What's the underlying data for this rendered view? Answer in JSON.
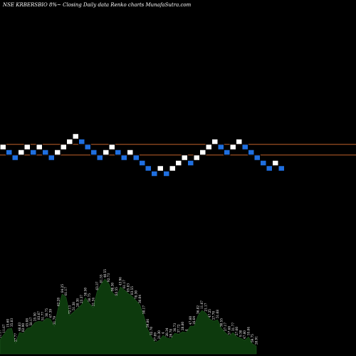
{
  "header": {
    "title": "NSE KRBERSBIO 8%~ Closing Daily data Renko charts MunafaSutra.com"
  },
  "colors": {
    "background": "#000000",
    "up_brick": "#ffffff",
    "down_brick": "#1f6fe0",
    "brick_edge": "#000000",
    "reference_line": "#c0602a",
    "volume_fill": "#0d3a0d",
    "volume_edge": "#1f5a1f",
    "text": "#ffffff"
  },
  "chart_data": [
    {
      "type": "renko",
      "brick_size": 1,
      "reference_levels": [
        2.5,
        0.5
      ],
      "bricks": [
        {
          "dir": "up",
          "level": 2
        },
        {
          "dir": "down",
          "level": 1
        },
        {
          "dir": "down",
          "level": 0
        },
        {
          "dir": "up",
          "level": 1
        },
        {
          "dir": "up",
          "level": 2
        },
        {
          "dir": "down",
          "level": 1
        },
        {
          "dir": "up",
          "level": 2
        },
        {
          "dir": "down",
          "level": 1
        },
        {
          "dir": "down",
          "level": 0
        },
        {
          "dir": "up",
          "level": 1
        },
        {
          "dir": "up",
          "level": 2
        },
        {
          "dir": "up",
          "level": 3
        },
        {
          "dir": "up",
          "level": 4
        },
        {
          "dir": "down",
          "level": 3
        },
        {
          "dir": "down",
          "level": 2
        },
        {
          "dir": "down",
          "level": 1
        },
        {
          "dir": "down",
          "level": 0
        },
        {
          "dir": "up",
          "level": 1
        },
        {
          "dir": "up",
          "level": 2
        },
        {
          "dir": "down",
          "level": 1
        },
        {
          "dir": "down",
          "level": 0
        },
        {
          "dir": "up",
          "level": 1
        },
        {
          "dir": "down",
          "level": 0
        },
        {
          "dir": "down",
          "level": -1
        },
        {
          "dir": "down",
          "level": -2
        },
        {
          "dir": "down",
          "level": -3
        },
        {
          "dir": "up",
          "level": -2
        },
        {
          "dir": "down",
          "level": -3
        },
        {
          "dir": "up",
          "level": -2
        },
        {
          "dir": "up",
          "level": -1
        },
        {
          "dir": "up",
          "level": 0
        },
        {
          "dir": "down",
          "level": -1
        },
        {
          "dir": "up",
          "level": 0
        },
        {
          "dir": "up",
          "level": 1
        },
        {
          "dir": "up",
          "level": 2
        },
        {
          "dir": "up",
          "level": 3
        },
        {
          "dir": "down",
          "level": 2
        },
        {
          "dir": "down",
          "level": 1
        },
        {
          "dir": "up",
          "level": 2
        },
        {
          "dir": "up",
          "level": 3
        },
        {
          "dir": "down",
          "level": 2
        },
        {
          "dir": "down",
          "level": 1
        },
        {
          "dir": "down",
          "level": 0
        },
        {
          "dir": "down",
          "level": -1
        },
        {
          "dir": "down",
          "level": -2
        },
        {
          "dir": "up",
          "level": -1
        },
        {
          "dir": "down",
          "level": -2
        }
      ]
    },
    {
      "type": "area",
      "series": [
        {
          "values": [
            40,
            55,
            70,
            72,
            30,
            60,
            58,
            72,
            75,
            88,
            92,
            90,
            100,
            98,
            78,
            130,
            168,
            160,
            108,
            118,
            128,
            138,
            158,
            142,
            130,
            175,
            195,
            210,
            198,
            172,
            160,
            188,
            180,
            170,
            162,
            150,
            138,
            108,
            70,
            48,
            32,
            38,
            52,
            45,
            42,
            58,
            55,
            62,
            60,
            78,
            78,
            108,
            122,
            115,
            98,
            92,
            96,
            72,
            60,
            50,
            60,
            48,
            44,
            38,
            48,
            28,
            22
          ],
          "labels": [
            "11.17",
            "11.67",
            "15.60",
            "35.83",
            "27.77",
            "48.83",
            "82.90",
            "45.08",
            "58.17",
            "25.50",
            "83.67",
            "51.77",
            "30.75",
            "67.39",
            "31.79",
            "62.28",
            "84.25",
            "61.17",
            "72.13",
            "51.38",
            "28.38",
            "23.37",
            "38.50",
            "38.75",
            "21.34",
            "63.37",
            "81.55",
            "40.55",
            "92.73",
            "98.30",
            "83.55",
            "43.96",
            "61.17",
            "85.83",
            "83.55",
            "78.30",
            "30.04",
            "50.17",
            "59.86",
            "32.70",
            "37.09",
            "21.30",
            "4",
            "28.34",
            "29.78",
            "36.73",
            "37.72",
            "28.80",
            "4",
            "47.60",
            "16.64",
            "36.82",
            "11.67",
            "21.17",
            "47.25",
            "27.70",
            "51.68",
            "30.55",
            "27.17",
            "57.68",
            "31.77",
            "27.60",
            "9.30",
            "47.60",
            "55.84",
            "59.75",
            "28.91"
          ]
        }
      ]
    }
  ]
}
